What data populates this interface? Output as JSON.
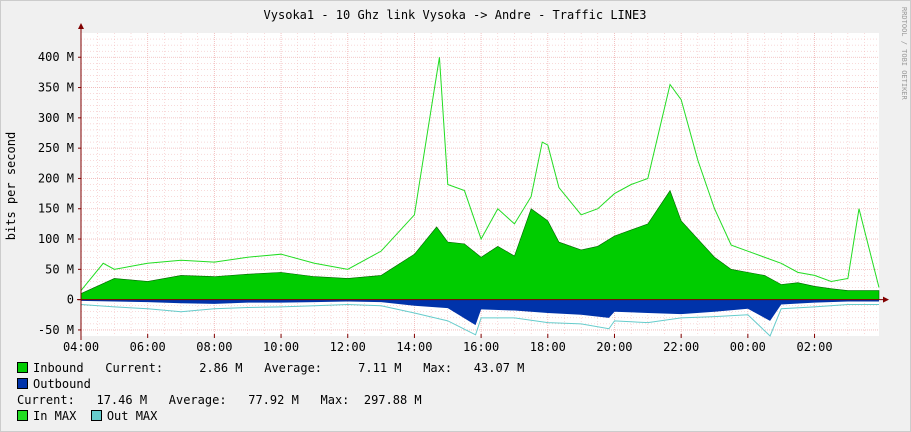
{
  "chart_data": {
    "type": "area",
    "title": "Vysoka1 - 10 Ghz link Vysoka -> Andre - Traffic LINE3",
    "watermark": "RRDTOOL / TOBI OETIKER",
    "ylabel": "bits per second",
    "ylim": [
      -60,
      440
    ],
    "y_ticks": [
      -50,
      0,
      50,
      100,
      150,
      200,
      250,
      300,
      350,
      400
    ],
    "y_tick_labels": [
      "-50 M",
      "0",
      "50 M",
      "100 M",
      "150 M",
      "200 M",
      "250 M",
      "300 M",
      "350 M",
      "400 M"
    ],
    "y_unit": "M",
    "x_range": [
      "04:00",
      "03:56"
    ],
    "x_tick_labels": [
      "04:00",
      "06:00",
      "08:00",
      "10:00",
      "12:00",
      "14:00",
      "16:00",
      "18:00",
      "20:00",
      "22:00",
      "00:00",
      "02:00"
    ],
    "grid": true,
    "colors": {
      "background": "#f0f0f0",
      "canvas": "#ffffff",
      "grid": "#f0b4b4",
      "axis": "#800000",
      "inbound": "#00cc00",
      "inbound_edge": "#006600",
      "outbound": "#0033aa",
      "in_max": "#22dd22",
      "out_max": "#66cccc"
    },
    "series_inbound": {
      "name": "Inbound",
      "times": [
        "04:00",
        "05:00",
        "06:00",
        "07:00",
        "08:00",
        "09:00",
        "10:00",
        "11:00",
        "12:00",
        "13:00",
        "14:00",
        "14:40",
        "15:00",
        "15:30",
        "16:00",
        "16:30",
        "17:00",
        "17:30",
        "18:00",
        "18:20",
        "19:00",
        "19:30",
        "20:00",
        "20:30",
        "21:00",
        "21:40",
        "22:00",
        "22:30",
        "23:00",
        "23:30",
        "00:00",
        "00:30",
        "01:00",
        "01:30",
        "02:00",
        "02:30",
        "03:00",
        "03:56"
      ],
      "values": [
        10,
        35,
        30,
        40,
        38,
        42,
        45,
        38,
        35,
        40,
        75,
        120,
        95,
        92,
        70,
        88,
        72,
        150,
        130,
        95,
        82,
        88,
        105,
        115,
        125,
        180,
        130,
        100,
        70,
        50,
        45,
        40,
        25,
        28,
        22,
        18,
        15,
        15
      ]
    },
    "series_in_max": {
      "name": "In MAX",
      "times": [
        "04:00",
        "04:40",
        "05:00",
        "06:00",
        "07:00",
        "08:00",
        "09:00",
        "10:00",
        "11:00",
        "12:00",
        "13:00",
        "14:00",
        "14:25",
        "14:45",
        "15:00",
        "15:30",
        "16:00",
        "16:30",
        "17:00",
        "17:30",
        "17:50",
        "18:00",
        "18:20",
        "19:00",
        "19:30",
        "20:00",
        "20:30",
        "21:00",
        "21:40",
        "22:00",
        "22:30",
        "23:00",
        "23:30",
        "00:00",
        "00:30",
        "01:00",
        "01:30",
        "02:00",
        "02:30",
        "03:00",
        "03:20",
        "03:56"
      ],
      "values": [
        15,
        60,
        50,
        60,
        65,
        62,
        70,
        75,
        60,
        50,
        80,
        140,
        285,
        400,
        190,
        180,
        100,
        150,
        125,
        170,
        260,
        255,
        185,
        140,
        150,
        175,
        190,
        200,
        355,
        330,
        230,
        150,
        90,
        80,
        70,
        60,
        45,
        40,
        30,
        35,
        150,
        20
      ]
    },
    "series_outbound": {
      "name": "Outbound",
      "times": [
        "04:00",
        "05:00",
        "06:00",
        "07:00",
        "08:00",
        "09:00",
        "10:00",
        "11:00",
        "12:00",
        "13:00",
        "14:00",
        "15:00",
        "15:50",
        "16:00",
        "17:00",
        "18:00",
        "19:00",
        "19:50",
        "20:00",
        "21:00",
        "22:00",
        "23:00",
        "00:00",
        "00:40",
        "01:00",
        "02:00",
        "03:00",
        "03:56"
      ],
      "values": [
        -2,
        -3,
        -4,
        -6,
        -7,
        -5,
        -5,
        -4,
        -3,
        -4,
        -10,
        -14,
        -42,
        -16,
        -18,
        -22,
        -25,
        -30,
        -20,
        -22,
        -24,
        -20,
        -15,
        -35,
        -8,
        -5,
        -3,
        -3
      ]
    },
    "series_out_max": {
      "name": "Out MAX",
      "times": [
        "04:00",
        "05:00",
        "06:00",
        "07:00",
        "08:00",
        "09:00",
        "10:00",
        "11:00",
        "12:00",
        "13:00",
        "14:00",
        "15:00",
        "15:50",
        "16:00",
        "17:00",
        "18:00",
        "19:00",
        "19:50",
        "20:00",
        "21:00",
        "22:00",
        "23:00",
        "00:00",
        "00:40",
        "01:00",
        "02:00",
        "03:00",
        "03:56"
      ],
      "values": [
        -8,
        -12,
        -15,
        -20,
        -15,
        -13,
        -12,
        -10,
        -8,
        -10,
        -22,
        -35,
        -58,
        -30,
        -30,
        -38,
        -40,
        -48,
        -35,
        -38,
        -30,
        -28,
        -25,
        -60,
        -15,
        -12,
        -8,
        -8
      ]
    },
    "legend": {
      "inbound_label": "Inbound",
      "outbound_label": "Outbound",
      "in_max_label": "In MAX",
      "out_max_label": "Out MAX",
      "current_label": "Current:",
      "average_label": "Average:",
      "max_label": "Max:",
      "inbound_current": "2.86 M",
      "inbound_average": "7.11 M",
      "inbound_max": "43.07 M",
      "outbound_current": "17.46 M",
      "outbound_average": "77.92 M",
      "outbound_max": "297.88 M"
    }
  }
}
